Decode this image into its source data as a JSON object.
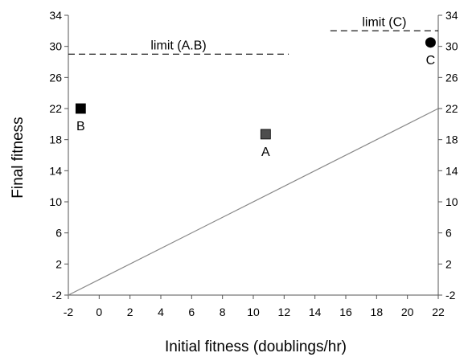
{
  "chart_data": {
    "type": "scatter",
    "xlabel": "Initial fitness (doublings/hr)",
    "ylabel": "Final fitness",
    "xlim": [
      -2,
      22
    ],
    "ylim": [
      -2,
      34
    ],
    "x_ticks": [
      -2,
      0,
      2,
      4,
      6,
      8,
      10,
      12,
      14,
      16,
      18,
      20,
      22
    ],
    "y_ticks": [
      -2,
      2,
      6,
      10,
      14,
      18,
      22,
      26,
      30,
      34
    ],
    "right_y_axis_ticks": true,
    "grid": false,
    "legend": "none",
    "points": [
      {
        "label": "A",
        "x": 10.8,
        "y": 18.7,
        "marker": "square",
        "color": "#4d4d4d"
      },
      {
        "label": "B",
        "x": -1.2,
        "y": 22.0,
        "marker": "square",
        "color": "#000000"
      },
      {
        "label": "C",
        "x": 21.5,
        "y": 30.5,
        "marker": "circle",
        "color": "#000000"
      }
    ],
    "reference_line": {
      "x": [
        -2,
        22
      ],
      "y": [
        -2,
        22
      ],
      "color": "#888888"
    },
    "limits": [
      {
        "label": "limit (A.B)",
        "x": [
          -2,
          12.3
        ],
        "y": 29.0
      },
      {
        "label": "limit (C)",
        "x": [
          15,
          22
        ],
        "y": 32.0
      }
    ]
  }
}
